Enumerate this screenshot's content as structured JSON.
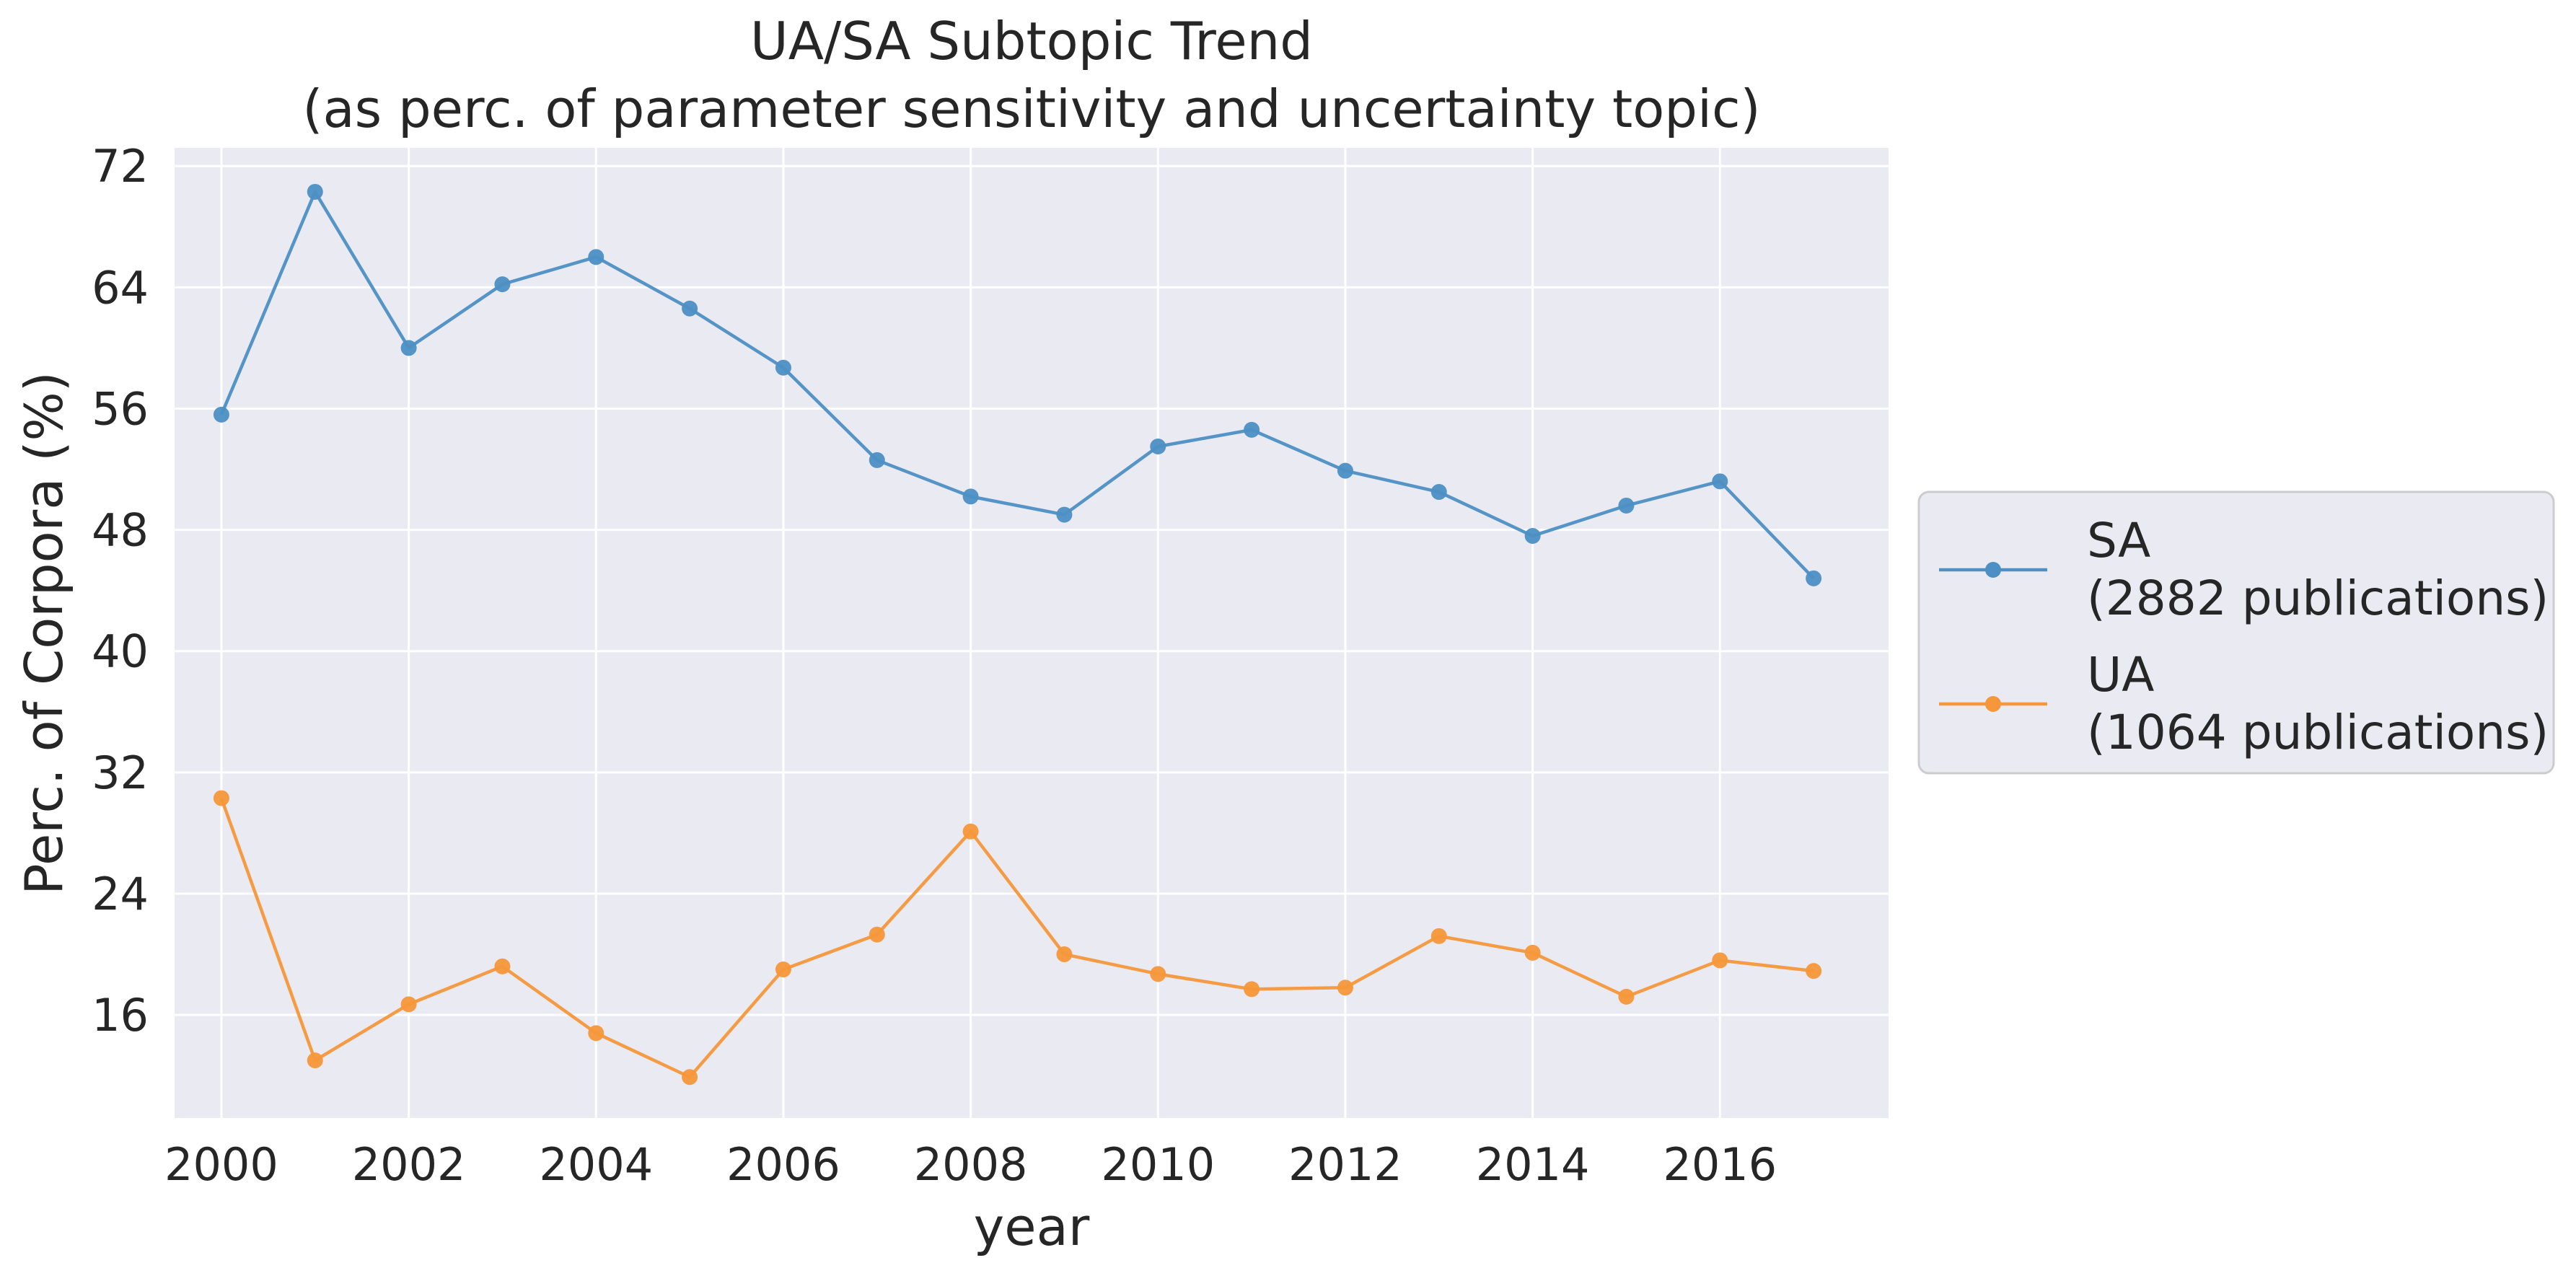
{
  "chart_data": {
    "type": "line",
    "title": "UA/SA Subtopic Trend",
    "subtitle": "(as perc. of parameter sensitivity and uncertainty topic)",
    "xlabel": "year",
    "ylabel": "Perc. of Corpora (%)",
    "x": [
      2000,
      2001,
      2002,
      2003,
      2004,
      2005,
      2006,
      2007,
      2008,
      2009,
      2010,
      2011,
      2012,
      2013,
      2014,
      2015,
      2016,
      2017
    ],
    "xticks": [
      2000,
      2002,
      2004,
      2006,
      2008,
      2010,
      2012,
      2014,
      2016
    ],
    "yticks": [
      16,
      24,
      32,
      40,
      48,
      56,
      64,
      72
    ],
    "xlim": [
      1999.5,
      2017.8
    ],
    "ylim": [
      9.2,
      73.2
    ],
    "grid": true,
    "legend_position": "outside-right",
    "series": [
      {
        "name": "SA",
        "name_detail": "(2882 publications)",
        "color": "#4c8fc4",
        "values": [
          55.6,
          70.3,
          60.0,
          64.2,
          66.0,
          62.6,
          58.7,
          52.6,
          50.2,
          49.0,
          53.5,
          54.6,
          51.9,
          50.5,
          47.6,
          49.6,
          51.2,
          44.8
        ]
      },
      {
        "name": "UA",
        "name_detail": "(1064 publications)",
        "color": "#f5973a",
        "values": [
          30.3,
          13.0,
          16.7,
          19.2,
          14.8,
          11.9,
          19.0,
          21.3,
          28.1,
          20.0,
          18.7,
          17.7,
          17.8,
          21.2,
          20.1,
          17.2,
          19.6,
          18.9
        ]
      }
    ]
  }
}
